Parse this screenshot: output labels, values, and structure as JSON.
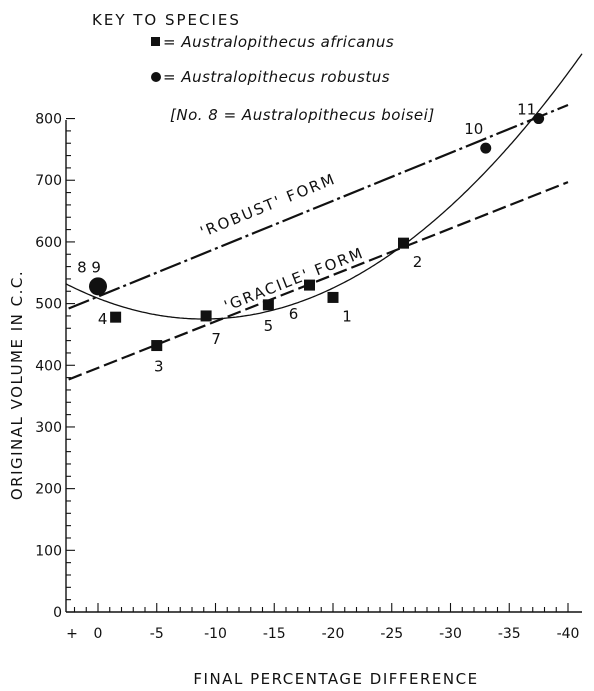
{
  "chart_data": {
    "type": "scatter",
    "title": "",
    "xlabel": "FINAL PERCENTAGE DIFFERENCE",
    "ylabel": "ORIGINAL VOLUME IN C.C.",
    "xlim": [
      2.5,
      -40
    ],
    "ylim": [
      0,
      800
    ],
    "x_ticks": [
      0,
      -5,
      -10,
      -15,
      -20,
      -25,
      -30,
      -35,
      -40
    ],
    "x_tick_labels": [
      "0",
      "-5",
      "-10",
      "-15",
      "-20",
      "-25",
      "-30",
      "-35",
      "-40"
    ],
    "x_plus_label": "+",
    "y_ticks": [
      0,
      100,
      200,
      300,
      400,
      500,
      600,
      700,
      800
    ],
    "y_tick_labels": [
      "0",
      "100",
      "200",
      "300",
      "400",
      "500",
      "600",
      "700",
      "800"
    ],
    "key": {
      "title": "KEY TO SPECIES",
      "africanus": "= Australopithecus africanus",
      "robustus": "= Australopithecus robustus",
      "boisei_note": "[No. 8 = Australopithecus boisei]"
    },
    "series": [
      {
        "name": "Australopithecus africanus",
        "marker": "square",
        "points": [
          {
            "label": "1",
            "x": -20,
            "y": 510
          },
          {
            "label": "2",
            "x": -26,
            "y": 598
          },
          {
            "label": "3",
            "x": -5,
            "y": 432
          },
          {
            "label": "4",
            "x": -1.5,
            "y": 478
          },
          {
            "label": "5",
            "x": -14.5,
            "y": 498
          },
          {
            "label": "6",
            "x": -18,
            "y": 530
          },
          {
            "label": "7",
            "x": -9.2,
            "y": 480
          }
        ]
      },
      {
        "name": "Australopithecus robustus",
        "marker": "circle",
        "points": [
          {
            "label": "10",
            "x": -33,
            "y": 752
          },
          {
            "label": "11",
            "x": -37.5,
            "y": 800
          }
        ]
      },
      {
        "name": "Australopithecus boisei",
        "marker": "large-circle",
        "points": [
          {
            "label": "8 9",
            "x": 0,
            "y": 528
          }
        ]
      }
    ],
    "lines": [
      {
        "name": "'ROBUST' FORM",
        "style": "dash-dot",
        "x": [
          2.5,
          -40
        ],
        "y": [
          492,
          822
        ]
      },
      {
        "name": "'GRACILE' FORM",
        "style": "dashed",
        "x": [
          2.5,
          -40
        ],
        "y": [
          377,
          697
        ]
      },
      {
        "name": "",
        "style": "solid-curve",
        "vertex_x": -9,
        "vertex_y": 475,
        "coef": 0.415
      }
    ],
    "colors": {
      "ink": "#111111",
      "background": "#ffffff"
    }
  }
}
